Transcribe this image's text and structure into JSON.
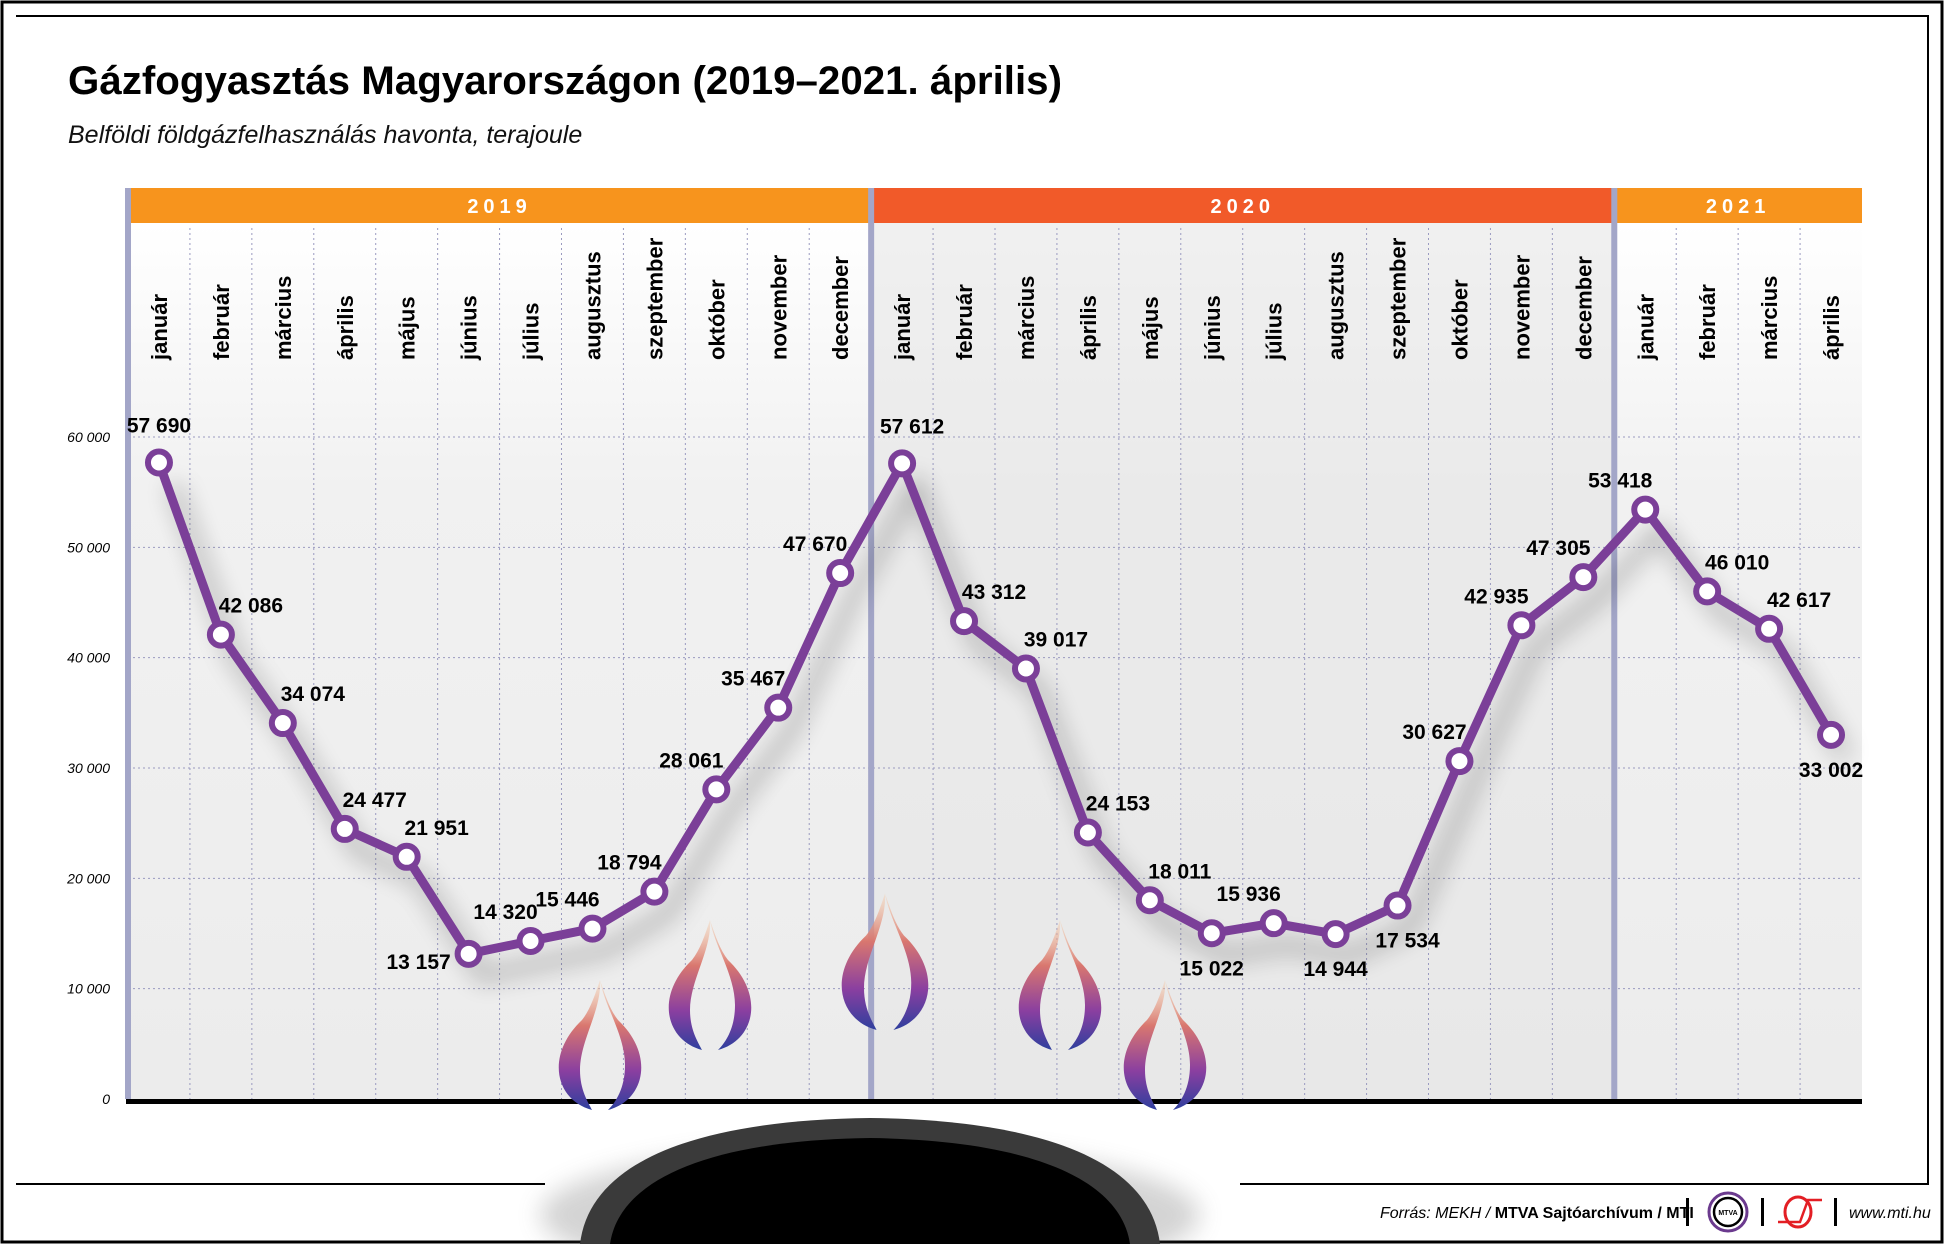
{
  "title": "Gázfogyasztás Magyarországon (2019–2021. április)",
  "subtitle": "Belföldi földgázfelhasználás havonta, terajoule",
  "colors": {
    "line": "#7b3f98",
    "year_2019": "#f7941d",
    "year_2020": "#f15a29",
    "year_2021": "#f7941d",
    "divider": "#a3a6c8"
  },
  "chart_data": {
    "type": "line",
    "title": "Gázfogyasztás Magyarországon (2019–2021. április)",
    "subtitle": "Belföldi földgázfelhasználás havonta, terajoule",
    "ylim": [
      0,
      60000
    ],
    "yticks": [
      0,
      10000,
      20000,
      30000,
      40000,
      50000,
      60000
    ],
    "ytick_labels": [
      "0",
      "10 000",
      "20 000",
      "30 000",
      "40 000",
      "50 000",
      "60 000"
    ],
    "grid": true,
    "years": [
      {
        "label": "2019",
        "months": 12
      },
      {
        "label": "2020",
        "months": 12
      },
      {
        "label": "2021",
        "months": 4
      }
    ],
    "categories": [
      "január",
      "február",
      "március",
      "április",
      "május",
      "június",
      "július",
      "augusztus",
      "szeptember",
      "október",
      "november",
      "december",
      "január",
      "február",
      "március",
      "április",
      "május",
      "június",
      "július",
      "augusztus",
      "szeptember",
      "október",
      "november",
      "december",
      "január",
      "február",
      "március",
      "április"
    ],
    "values": [
      57690,
      42086,
      34074,
      24477,
      21951,
      13157,
      14320,
      15446,
      18794,
      28061,
      35467,
      47670,
      57612,
      43312,
      39017,
      24153,
      18011,
      15022,
      15936,
      14944,
      17534,
      30627,
      42935,
      47305,
      53418,
      46010,
      42617,
      33002
    ],
    "value_labels": [
      "57 690",
      "42 086",
      "34 074",
      "24 477",
      "21 951",
      "13 157",
      "14 320",
      "15 446",
      "18 794",
      "28 061",
      "35 467",
      "47 670",
      "57 612",
      "43 312",
      "39 017",
      "24 153",
      "18 011",
      "15 022",
      "15 936",
      "14 944",
      "17 534",
      "30 627",
      "42 935",
      "47 305",
      "53 418",
      "46 010",
      "42 617",
      "33 002"
    ]
  },
  "footer": {
    "source_prefix": "Forrás: MEKH / ",
    "source_bold": "MTVA Sajtóarchívum / MTI",
    "logo_mtva": "MTVA",
    "url": "www.mti.hu"
  }
}
